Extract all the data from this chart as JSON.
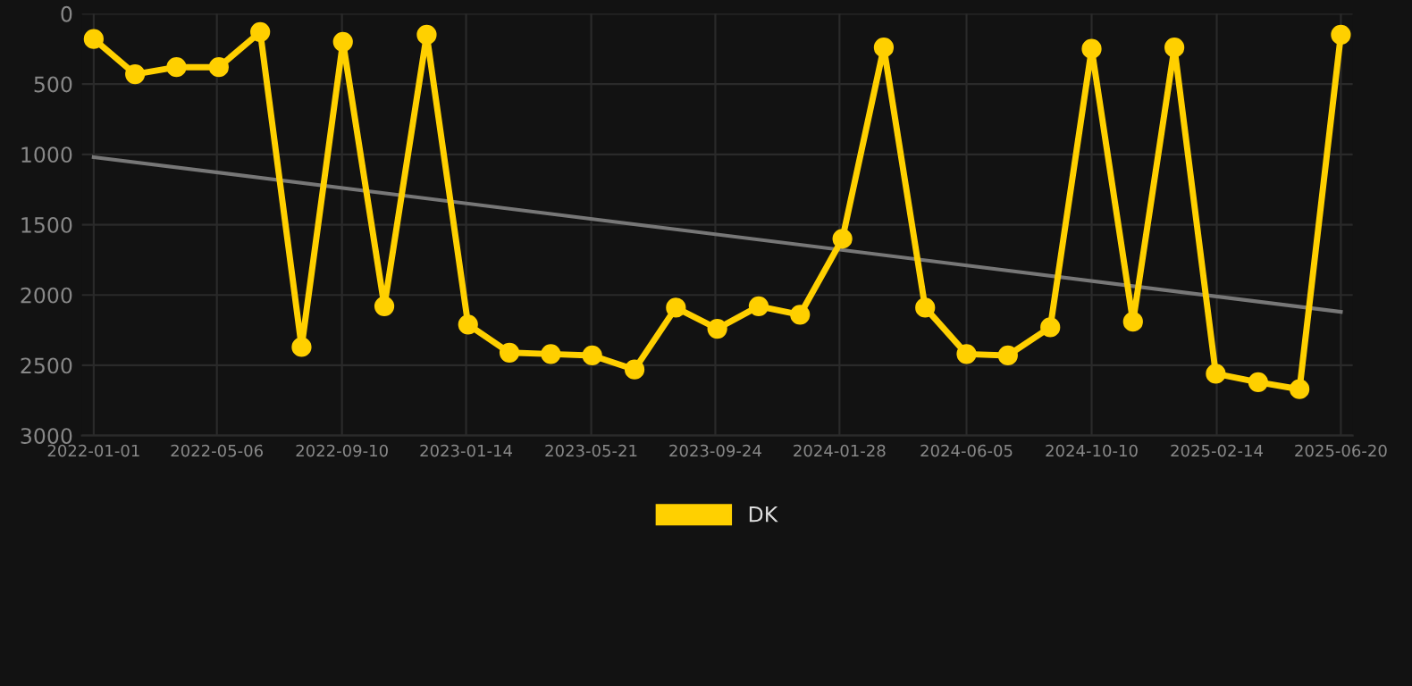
{
  "chart_data": {
    "type": "line",
    "x": [
      "2022-01-01",
      "2022-02-12",
      "2022-03-26",
      "2022-05-08",
      "2022-06-19",
      "2022-07-31",
      "2022-09-11",
      "2022-10-23",
      "2022-12-05",
      "2023-01-16",
      "2023-02-27",
      "2023-04-10",
      "2023-05-22",
      "2023-07-04",
      "2023-08-15",
      "2023-09-26",
      "2023-11-07",
      "2023-12-19",
      "2024-01-31",
      "2024-03-13",
      "2024-04-24",
      "2024-06-05",
      "2024-07-17",
      "2024-08-29",
      "2024-10-10",
      "2024-11-21",
      "2025-01-02",
      "2025-02-13",
      "2025-03-28",
      "2025-05-09",
      "2025-06-20"
    ],
    "series": [
      {
        "name": "DK",
        "color": "#ffd000",
        "marker": "circle",
        "values": [
          180,
          430,
          380,
          380,
          130,
          2370,
          200,
          2080,
          150,
          2210,
          2410,
          2420,
          2430,
          2530,
          2090,
          2240,
          2080,
          2140,
          1600,
          240,
          2090,
          2420,
          2430,
          2230,
          250,
          2190,
          240,
          2560,
          2620,
          2670,
          150
        ]
      },
      {
        "type": "line",
        "color": "#777777",
        "marker": "none",
        "x": [
          "2022-01-01",
          "2025-06-20"
        ],
        "values": [
          1020,
          2120
        ]
      }
    ],
    "xlim": [
      "2021-12-20",
      "2025-07-02"
    ],
    "xticks": [
      "2022-01-01",
      "2022-05-06",
      "2022-09-10",
      "2023-01-14",
      "2023-05-21",
      "2023-09-24",
      "2024-01-28",
      "2024-06-05",
      "2024-10-10",
      "2025-02-14",
      "2025-06-20"
    ],
    "ylim": [
      3000,
      0
    ],
    "yticks": [
      0,
      500,
      1000,
      1500,
      2000,
      2500,
      3000
    ],
    "grid": true,
    "legend": "bottom",
    "line_style": "solid"
  }
}
